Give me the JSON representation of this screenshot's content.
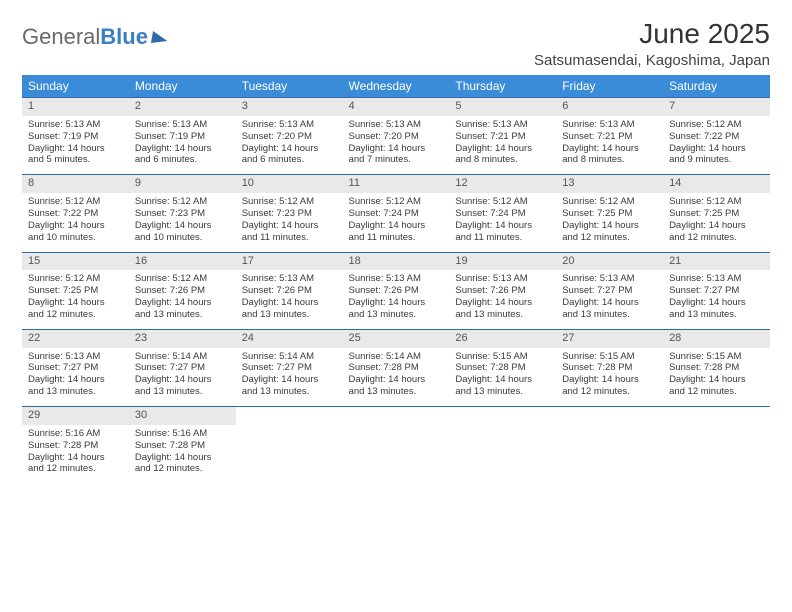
{
  "brand": {
    "part1": "General",
    "part2": "Blue"
  },
  "title": "June 2025",
  "location": "Satsumasendai, Kagoshima, Japan",
  "colors": {
    "header_bg": "#3a8bd8",
    "rule": "#2f6aa8",
    "daynum_bg": "#e9e9e9",
    "text": "#3b3b3b",
    "page_bg": "#ffffff"
  },
  "fonts": {
    "title_pt": 28,
    "location_pt": 15,
    "dow_pt": 12,
    "body_pt": 9.5
  },
  "daysOfWeek": [
    "Sunday",
    "Monday",
    "Tuesday",
    "Wednesday",
    "Thursday",
    "Friday",
    "Saturday"
  ],
  "weeks": [
    [
      {
        "n": "1",
        "rise": "5:13 AM",
        "set": "7:19 PM",
        "dl": "14 hours and 5 minutes."
      },
      {
        "n": "2",
        "rise": "5:13 AM",
        "set": "7:19 PM",
        "dl": "14 hours and 6 minutes."
      },
      {
        "n": "3",
        "rise": "5:13 AM",
        "set": "7:20 PM",
        "dl": "14 hours and 6 minutes."
      },
      {
        "n": "4",
        "rise": "5:13 AM",
        "set": "7:20 PM",
        "dl": "14 hours and 7 minutes."
      },
      {
        "n": "5",
        "rise": "5:13 AM",
        "set": "7:21 PM",
        "dl": "14 hours and 8 minutes."
      },
      {
        "n": "6",
        "rise": "5:13 AM",
        "set": "7:21 PM",
        "dl": "14 hours and 8 minutes."
      },
      {
        "n": "7",
        "rise": "5:12 AM",
        "set": "7:22 PM",
        "dl": "14 hours and 9 minutes."
      }
    ],
    [
      {
        "n": "8",
        "rise": "5:12 AM",
        "set": "7:22 PM",
        "dl": "14 hours and 10 minutes."
      },
      {
        "n": "9",
        "rise": "5:12 AM",
        "set": "7:23 PM",
        "dl": "14 hours and 10 minutes."
      },
      {
        "n": "10",
        "rise": "5:12 AM",
        "set": "7:23 PM",
        "dl": "14 hours and 11 minutes."
      },
      {
        "n": "11",
        "rise": "5:12 AM",
        "set": "7:24 PM",
        "dl": "14 hours and 11 minutes."
      },
      {
        "n": "12",
        "rise": "5:12 AM",
        "set": "7:24 PM",
        "dl": "14 hours and 11 minutes."
      },
      {
        "n": "13",
        "rise": "5:12 AM",
        "set": "7:25 PM",
        "dl": "14 hours and 12 minutes."
      },
      {
        "n": "14",
        "rise": "5:12 AM",
        "set": "7:25 PM",
        "dl": "14 hours and 12 minutes."
      }
    ],
    [
      {
        "n": "15",
        "rise": "5:12 AM",
        "set": "7:25 PM",
        "dl": "14 hours and 12 minutes."
      },
      {
        "n": "16",
        "rise": "5:12 AM",
        "set": "7:26 PM",
        "dl": "14 hours and 13 minutes."
      },
      {
        "n": "17",
        "rise": "5:13 AM",
        "set": "7:26 PM",
        "dl": "14 hours and 13 minutes."
      },
      {
        "n": "18",
        "rise": "5:13 AM",
        "set": "7:26 PM",
        "dl": "14 hours and 13 minutes."
      },
      {
        "n": "19",
        "rise": "5:13 AM",
        "set": "7:26 PM",
        "dl": "14 hours and 13 minutes."
      },
      {
        "n": "20",
        "rise": "5:13 AM",
        "set": "7:27 PM",
        "dl": "14 hours and 13 minutes."
      },
      {
        "n": "21",
        "rise": "5:13 AM",
        "set": "7:27 PM",
        "dl": "14 hours and 13 minutes."
      }
    ],
    [
      {
        "n": "22",
        "rise": "5:13 AM",
        "set": "7:27 PM",
        "dl": "14 hours and 13 minutes."
      },
      {
        "n": "23",
        "rise": "5:14 AM",
        "set": "7:27 PM",
        "dl": "14 hours and 13 minutes."
      },
      {
        "n": "24",
        "rise": "5:14 AM",
        "set": "7:27 PM",
        "dl": "14 hours and 13 minutes."
      },
      {
        "n": "25",
        "rise": "5:14 AM",
        "set": "7:28 PM",
        "dl": "14 hours and 13 minutes."
      },
      {
        "n": "26",
        "rise": "5:15 AM",
        "set": "7:28 PM",
        "dl": "14 hours and 13 minutes."
      },
      {
        "n": "27",
        "rise": "5:15 AM",
        "set": "7:28 PM",
        "dl": "14 hours and 12 minutes."
      },
      {
        "n": "28",
        "rise": "5:15 AM",
        "set": "7:28 PM",
        "dl": "14 hours and 12 minutes."
      }
    ],
    [
      {
        "n": "29",
        "rise": "5:16 AM",
        "set": "7:28 PM",
        "dl": "14 hours and 12 minutes."
      },
      {
        "n": "30",
        "rise": "5:16 AM",
        "set": "7:28 PM",
        "dl": "14 hours and 12 minutes."
      },
      null,
      null,
      null,
      null,
      null
    ]
  ],
  "labels": {
    "sunrise": "Sunrise: ",
    "sunset": "Sunset: ",
    "daylight": "Daylight: "
  }
}
